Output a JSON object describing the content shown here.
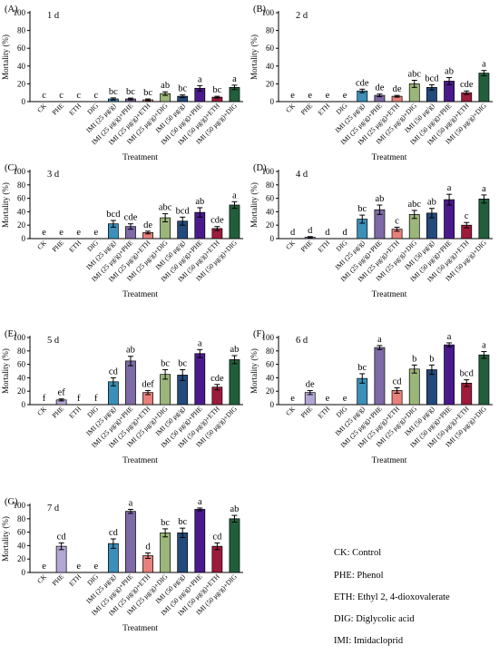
{
  "chart_data": [
    {
      "type": "bar",
      "panel_label": "(A)",
      "day_label": "1 d",
      "ylabel": "Mortality (%)",
      "xlabel": "Treatment",
      "ylim": [
        0,
        100
      ],
      "yticks": [
        0,
        20,
        40,
        60,
        80,
        100
      ],
      "categories": [
        "CK",
        "PHE",
        "ETH",
        "DIG",
        "IMI (25 μg/g)",
        "IMI (25 μg/g)+PHE",
        "IMI (25 μg/g)+ETH",
        "IMI (25 μg/g)+DIG",
        "IMI (50 μg/g)",
        "IMI (50 μg/g)+PHE",
        "IMI (50 μg/g)+ETH",
        "IMI (50 μg/g)+DIG"
      ],
      "values": [
        0,
        0,
        0,
        0,
        3,
        3,
        2,
        9,
        6,
        15,
        5,
        16
      ],
      "errors": [
        0,
        0,
        0,
        0,
        1.2,
        1,
        1,
        2,
        1.5,
        3,
        1,
        2.5
      ],
      "letters": [
        "c",
        "c",
        "c",
        "c",
        "bc",
        "bc",
        "bc",
        "ab",
        "bc",
        "a",
        "bc",
        "a"
      ]
    },
    {
      "type": "bar",
      "panel_label": "(B)",
      "day_label": "2 d",
      "ylabel": "Mortality (%)",
      "xlabel": "Treatment",
      "ylim": [
        0,
        100
      ],
      "yticks": [
        0,
        20,
        40,
        60,
        80,
        100
      ],
      "categories": [
        "CK",
        "PHE",
        "ETH",
        "DIG",
        "IMI (25 μg/g)",
        "IMI (25 μg/g)+PHE",
        "IMI (25 μg/g)+ETH",
        "IMI (25 μg/g)+DIG",
        "IMI (50 μg/g)",
        "IMI (50 μg/g)+PHE",
        "IMI (50 μg/g)+ETH",
        "IMI (50 μg/g)+DIG"
      ],
      "values": [
        0,
        0,
        0,
        0,
        12,
        7,
        6,
        20,
        16,
        23,
        10,
        32
      ],
      "errors": [
        0,
        0,
        0,
        0,
        2,
        1.5,
        1,
        4,
        3,
        4,
        2,
        3
      ],
      "letters": [
        "e",
        "e",
        "e",
        "e",
        "cde",
        "de",
        "de",
        "abc",
        "bcd",
        "ab",
        "cde",
        "a"
      ]
    },
    {
      "type": "bar",
      "panel_label": "(C)",
      "day_label": "3 d",
      "ylabel": "Mortality (%)",
      "xlabel": "Treatment",
      "ylim": [
        0,
        100
      ],
      "yticks": [
        0,
        20,
        40,
        60,
        80,
        100
      ],
      "categories": [
        "CK",
        "PHE",
        "ETH",
        "DIG",
        "IMI (25 μg/g)",
        "IMI (25 μg/g)+PHE",
        "IMI (25 μg/g)+ETH",
        "IMI (25 μg/g)+DIG",
        "IMI (50 μg/g)",
        "IMI (50 μg/g)+PHE",
        "IMI (50 μg/g)+ETH",
        "IMI (50 μg/g)+DIG"
      ],
      "values": [
        0,
        0,
        0,
        0,
        22,
        18,
        9,
        31,
        26,
        39,
        15,
        50
      ],
      "errors": [
        0,
        0,
        0,
        0,
        5,
        4,
        2,
        6,
        6,
        7,
        3,
        5
      ],
      "letters": [
        "e",
        "e",
        "e",
        "e",
        "bcd",
        "cde",
        "de",
        "abc",
        "bcd",
        "ab",
        "cde",
        "a"
      ]
    },
    {
      "type": "bar",
      "panel_label": "(D)",
      "day_label": "4 d",
      "ylabel": "Mortality (%)",
      "xlabel": "Treatment",
      "ylim": [
        0,
        100
      ],
      "yticks": [
        0,
        20,
        40,
        60,
        80,
        100
      ],
      "categories": [
        "CK",
        "PHE",
        "ETH",
        "DIG",
        "IMI (25 μg/g)",
        "IMI (25 μg/g)+PHE",
        "IMI (25 μg/g)+ETH",
        "IMI (25 μg/g)+DIG",
        "IMI (50 μg/g)",
        "IMI (50 μg/g)+PHE",
        "IMI (50 μg/g)+ETH",
        "IMI (50 μg/g)+DIG"
      ],
      "values": [
        0,
        2,
        0,
        0,
        29,
        43,
        14,
        36,
        38,
        58,
        20,
        59
      ],
      "errors": [
        0,
        1,
        0,
        0,
        6,
        7,
        3,
        6,
        7,
        8,
        4,
        6
      ],
      "letters": [
        "d",
        "d",
        "d",
        "d",
        "bc",
        "ab",
        "c",
        "abc",
        "ab",
        "a",
        "c",
        "a"
      ]
    },
    {
      "type": "bar",
      "panel_label": "(E)",
      "day_label": "5 d",
      "ylabel": "Mortality (%)",
      "xlabel": "Treatment",
      "ylim": [
        0,
        100
      ],
      "yticks": [
        0,
        20,
        40,
        60,
        80,
        100
      ],
      "categories": [
        "CK",
        "PHE",
        "ETH",
        "DIG",
        "IMI (25 μg/g)",
        "IMI (25 μg/g)+PHE",
        "IMI (25 μg/g)+ETH",
        "IMI (25 μg/g)+DIG",
        "IMI (50 μg/g)",
        "IMI (50 μg/g)+PHE",
        "IMI (50 μg/g)+ETH",
        "IMI (50 μg/g)+DIG"
      ],
      "values": [
        0,
        7,
        0,
        0,
        34,
        65,
        18,
        45,
        44,
        76,
        26,
        67
      ],
      "errors": [
        0,
        1.5,
        0,
        0,
        6,
        7,
        3,
        7,
        8,
        6,
        4,
        6
      ],
      "letters": [
        "f",
        "ef",
        "f",
        "f",
        "cd",
        "ab",
        "def",
        "bc",
        "bc",
        "a",
        "cde",
        "ab"
      ]
    },
    {
      "type": "bar",
      "panel_label": "(F)",
      "day_label": "6 d",
      "ylabel": "Mortality (%)",
      "xlabel": "Treatment",
      "ylim": [
        0,
        100
      ],
      "yticks": [
        0,
        20,
        40,
        60,
        80,
        100
      ],
      "categories": [
        "CK",
        "PHE",
        "ETH",
        "DIG",
        "IMI (25 μg/g)",
        "IMI (25 μg/g)+PHE",
        "IMI (25 μg/g)+ETH",
        "IMI (25 μg/g)+DIG",
        "IMI (50 μg/g)",
        "IMI (50 μg/g)+PHE",
        "IMI (50 μg/g)+ETH",
        "IMI (50 μg/g)+DIG"
      ],
      "values": [
        0,
        18,
        0,
        0,
        39,
        85,
        21,
        53,
        52,
        89,
        32,
        74
      ],
      "errors": [
        0,
        3,
        0,
        0,
        7,
        3,
        4,
        6,
        7,
        3,
        5,
        5
      ],
      "letters": [
        "e",
        "de",
        "e",
        "e",
        "bc",
        "a",
        "cd",
        "b",
        "b",
        "a",
        "bcd",
        "a"
      ]
    },
    {
      "type": "bar",
      "panel_label": "(G)",
      "day_label": "7 d",
      "ylabel": "Mortality (%)",
      "xlabel": "Treatment",
      "ylim": [
        0,
        100
      ],
      "yticks": [
        0,
        20,
        40,
        60,
        80,
        100
      ],
      "categories": [
        "CK",
        "PHE",
        "ETH",
        "DIG",
        "IMI (25 μg/g)",
        "IMI (25 μg/g)+PHE",
        "IMI (25 μg/g)+ETH",
        "IMI (25 μg/g)+DIG",
        "IMI (50 μg/g)",
        "IMI (50 μg/g)+PHE",
        "IMI (50 μg/g)+ETH",
        "IMI (50 μg/g)+DIG"
      ],
      "values": [
        0,
        39,
        0,
        0,
        43,
        91,
        25,
        59,
        59,
        94,
        39,
        80
      ],
      "errors": [
        0,
        5,
        0,
        0,
        7,
        3,
        4,
        6,
        7,
        2,
        5,
        5
      ],
      "letters": [
        "e",
        "cd",
        "e",
        "e",
        "cd",
        "a",
        "d",
        "bc",
        "bc",
        "a",
        "cd",
        "ab"
      ]
    }
  ],
  "bar_colors": [
    "#ffffff",
    "#b4a7d6",
    "#ffffff",
    "#ffffff",
    "#3b8fb9",
    "#7e6aa6",
    "#e8807b",
    "#9bb67a",
    "#234a7c",
    "#4a1a8c",
    "#9e1b3c",
    "#215f3a"
  ],
  "legend": [
    "CK: Control",
    "PHE: Phenol",
    "ETH: Ethyl 2, 4-dioxovalerate",
    "DIG: Diglycolic acid",
    "IMI: Imidacloprid"
  ]
}
